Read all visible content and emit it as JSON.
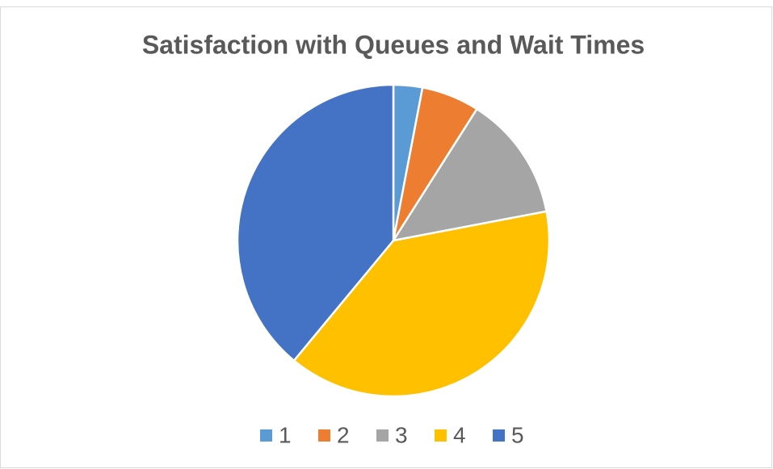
{
  "chart_data": {
    "type": "pie",
    "title": "Satisfaction with Queues and Wait Times",
    "categories": [
      "1",
      "2",
      "3",
      "4",
      "5"
    ],
    "values": [
      3,
      6,
      13,
      39,
      39
    ],
    "colors": [
      "#5b9bd5",
      "#ed7d31",
      "#a5a5a5",
      "#ffc000",
      "#4472c4"
    ],
    "legend": "bottom"
  }
}
